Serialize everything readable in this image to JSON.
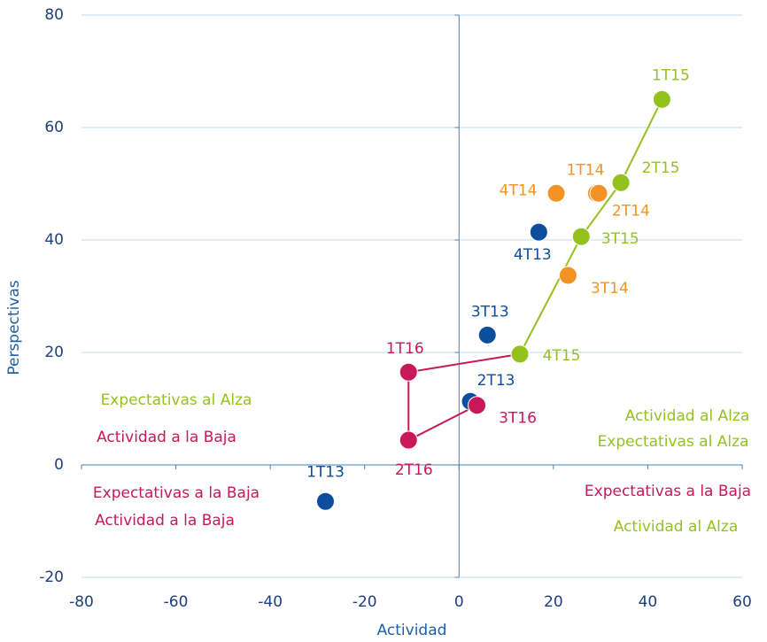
{
  "chart_data": {
    "type": "scatter",
    "xlabel": "Actividad",
    "ylabel": "Perspectivas",
    "xlim": [
      -80,
      60
    ],
    "ylim": [
      -20,
      80
    ],
    "xticks": [
      -80,
      -60,
      -40,
      -20,
      0,
      20,
      40,
      60
    ],
    "yticks": [
      -20,
      0,
      20,
      40,
      60,
      80
    ],
    "grid": true,
    "series": [
      {
        "color": "#0d4d9e",
        "line": false,
        "labels": [
          "1T13",
          "2T13",
          "3T13",
          "4T13"
        ],
        "x": [
          -28.3,
          2.4,
          6.0,
          16.9
        ],
        "values": [
          -6.5,
          11.3,
          23.1,
          41.4
        ]
      },
      {
        "color": "#f39325",
        "line": false,
        "labels": [
          "2T14",
          "1T14",
          "3T14",
          "4T14"
        ],
        "x": [
          29.1,
          29.6,
          23.1,
          20.6
        ],
        "values": [
          48.3,
          48.3,
          33.7,
          48.3
        ]
      },
      {
        "color": "#95c11f",
        "line": true,
        "labels": [
          "1T15",
          "2T15",
          "3T15",
          "4T15"
        ],
        "x": [
          43.0,
          34.3,
          25.9,
          12.9
        ],
        "values": [
          65.0,
          50.2,
          40.6,
          19.7
        ]
      },
      {
        "color": "#c8185a",
        "line": true,
        "connect_from_previous": true,
        "labels": [
          "1T16",
          "2T16",
          "3T16"
        ],
        "x": [
          -10.7,
          -10.7,
          3.8
        ],
        "values": [
          16.5,
          4.4,
          10.6
        ]
      }
    ],
    "annotations": [
      {
        "text": "Expectativas al Alza",
        "color": "#95c11f"
      },
      {
        "text": "Actividad a la Baja",
        "color": "#c8185a"
      },
      {
        "text": "Expectativas a la Baja",
        "color": "#c8185a"
      },
      {
        "text": "Actividad a la Baja",
        "color": "#c8185a"
      },
      {
        "text": "Actividad al Alza",
        "color": "#95c11f"
      },
      {
        "text": "Expectativas al Alza",
        "color": "#95c11f"
      },
      {
        "text": "Expectativas a la Baja",
        "color": "#c8185a"
      },
      {
        "text": "Actividad al Alza",
        "color": "#95c11f"
      }
    ]
  }
}
